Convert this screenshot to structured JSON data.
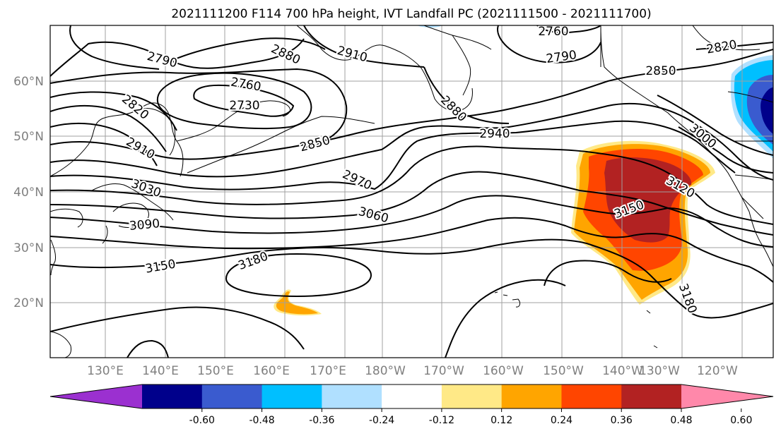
{
  "title": "2021111200 F114 700 hPa height, IVT Landfall PC (2021111500 - 2021111700)",
  "latitude_labels": [
    "60°N",
    "50°N",
    "40°N",
    "30°N",
    "20°N"
  ],
  "longitude_labels": [
    "130°E",
    "140°E",
    "150°E",
    "160°E",
    "170°E",
    "180°W",
    "170°W",
    "160°W",
    "150°W",
    "140°W",
    "130°W",
    "120°W"
  ],
  "contour_labels": [
    "2790",
    "2880",
    "2910",
    "2760",
    "2790",
    "2820",
    "2760",
    "2730",
    "2820",
    "2850",
    "2880",
    "2940",
    "3000",
    "2850",
    "2910",
    "2970",
    "3120",
    "3030",
    "3060",
    "3150",
    "3090",
    "3150",
    "3180",
    "3180"
  ],
  "colorbar": {
    "tick_labels": [
      "-0.60",
      "-0.48",
      "-0.36",
      "-0.24",
      "-0.12",
      "0.12",
      "0.24",
      "0.36",
      "0.48",
      "0.60"
    ],
    "colors": [
      "#9b30d0",
      "#00008b",
      "#3a5bcf",
      "#00bfff",
      "#b0e0ff",
      "#ffffff",
      "#ffe987",
      "#ffa500",
      "#ff4500",
      "#b22222",
      "#ff88aa"
    ]
  },
  "colors": {
    "contour_line": "#000000",
    "gridline": "#a0a0a0",
    "positive_levels": [
      "#ffe987",
      "#ffa500",
      "#ff4500",
      "#b22222"
    ],
    "negative_levels": [
      "#b0e0ff",
      "#00bfff",
      "#3a5bcf",
      "#00008b"
    ]
  }
}
